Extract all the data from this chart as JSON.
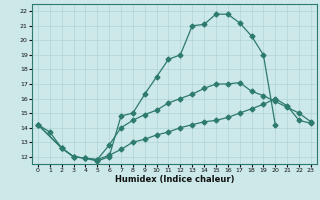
{
  "xlabel": "Humidex (Indice chaleur)",
  "bg_color": "#cce8e8",
  "grid_color": "#b0d4d4",
  "line_color": "#2d7a6e",
  "xlim": [
    -0.5,
    23.5
  ],
  "ylim": [
    11.5,
    22.5
  ],
  "yticks": [
    12,
    13,
    14,
    15,
    16,
    17,
    18,
    19,
    20,
    21,
    22
  ],
  "xticks": [
    0,
    1,
    2,
    3,
    4,
    5,
    6,
    7,
    8,
    9,
    10,
    11,
    12,
    13,
    14,
    15,
    16,
    17,
    18,
    19,
    20,
    21,
    22,
    23
  ],
  "line1_x": [
    0,
    1,
    2,
    3,
    4,
    5,
    6,
    7,
    8,
    9,
    10,
    11,
    12,
    13,
    14,
    15,
    16,
    17,
    18,
    19,
    20
  ],
  "line1_y": [
    14.2,
    13.7,
    12.6,
    12.0,
    11.9,
    11.7,
    12.0,
    14.8,
    15.0,
    16.3,
    17.5,
    18.7,
    19.0,
    21.0,
    21.1,
    21.8,
    21.8,
    21.2,
    20.3,
    19.0,
    14.2
  ],
  "line2_x": [
    0,
    2,
    3,
    4,
    5,
    6,
    7,
    8,
    9,
    10,
    11,
    12,
    13,
    14,
    15,
    16,
    17,
    18,
    19,
    20,
    21,
    22,
    23
  ],
  "line2_y": [
    14.2,
    12.6,
    12.0,
    11.9,
    11.8,
    12.8,
    14.0,
    14.5,
    14.9,
    15.2,
    15.7,
    16.0,
    16.3,
    16.7,
    17.0,
    17.0,
    17.1,
    16.5,
    16.2,
    15.8,
    15.4,
    15.0,
    14.4
  ],
  "line3_x": [
    0,
    2,
    3,
    4,
    5,
    6,
    7,
    8,
    9,
    10,
    11,
    12,
    13,
    14,
    15,
    16,
    17,
    18,
    19,
    20,
    21,
    22,
    23
  ],
  "line3_y": [
    14.2,
    12.6,
    12.0,
    11.9,
    11.8,
    12.1,
    12.5,
    13.0,
    13.2,
    13.5,
    13.7,
    14.0,
    14.2,
    14.4,
    14.5,
    14.7,
    15.0,
    15.3,
    15.6,
    16.0,
    15.5,
    14.5,
    14.3
  ]
}
